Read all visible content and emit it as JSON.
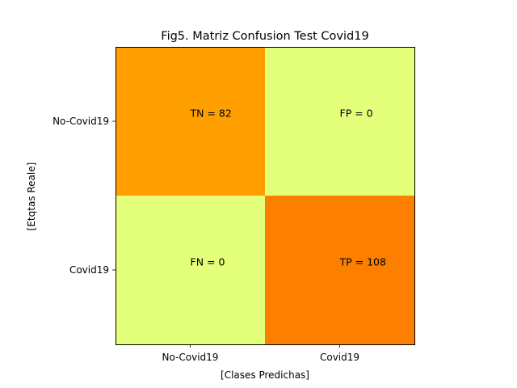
{
  "chart_data": {
    "type": "heatmap",
    "title": "Fig5. Matriz Confusion Test Covid19",
    "xlabel": "[Clases Predichas]",
    "ylabel": "[Etqtas Reale]",
    "x_categories": [
      "No-Covid19",
      "Covid19"
    ],
    "y_categories": [
      "No-Covid19",
      "Covid19"
    ],
    "values": [
      [
        82,
        0
      ],
      [
        0,
        108
      ]
    ],
    "cell_labels": [
      [
        "TN = 82",
        "FP = 0"
      ],
      [
        "FN = 0",
        "TP = 108"
      ]
    ],
    "colormap": "Wistia",
    "grid": false
  }
}
